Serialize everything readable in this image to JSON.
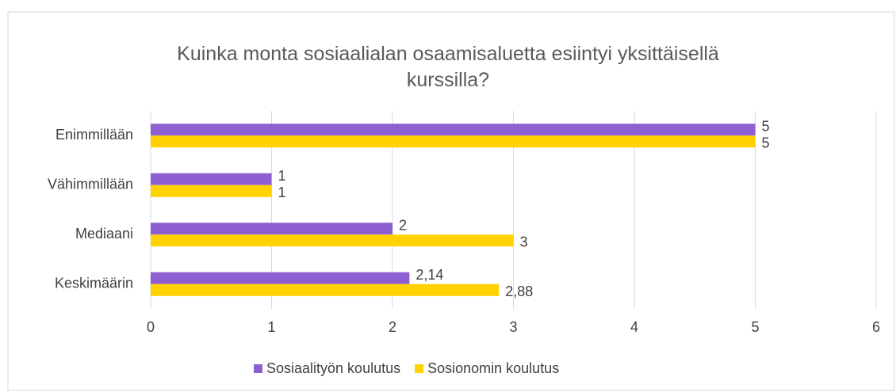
{
  "chart_data": {
    "type": "hbar",
    "title": "Kuinka monta sosiaalialan osaamisaluetta esiintyi yksittäisellä kurssilla?",
    "categories": [
      "Enimmillään",
      "Vähimmillään",
      "Mediaani",
      "Keskimäärin"
    ],
    "series": [
      {
        "name": "Sosiaalityön koulutus",
        "color": "#8e5fd0",
        "values": [
          5,
          1,
          2,
          2.14
        ],
        "value_labels": [
          "5",
          "1",
          "2",
          "2,14"
        ]
      },
      {
        "name": "Sosionomin koulutus",
        "color": "#ffd200",
        "values": [
          5,
          1,
          3,
          2.88
        ],
        "value_labels": [
          "5",
          "1",
          "3",
          "2,88"
        ]
      }
    ],
    "xlim": [
      0,
      6
    ],
    "xticks": [
      0,
      1,
      2,
      3,
      4,
      5,
      6
    ],
    "grid": true,
    "legend": "bottom"
  }
}
